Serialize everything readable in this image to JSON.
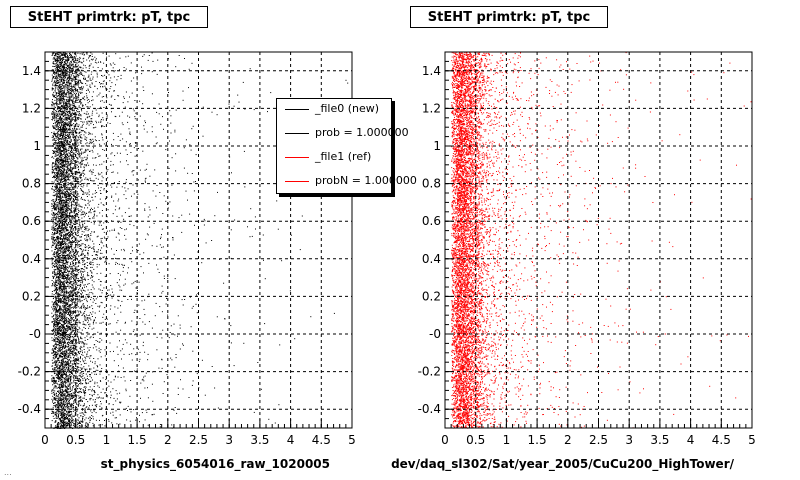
{
  "panels": [
    {
      "title": "StEHT primtrk: pT, tpc",
      "xtitle": "st_physics_6054016_raw_1020005"
    },
    {
      "title": "StEHT primtrk: pT, tpc",
      "xtitle": "dev/daq_sl302/Sat/year_2005/CuCu200_HighTower/"
    }
  ],
  "legend": {
    "entries": [
      {
        "label": "_file0 (new)",
        "color": "#000000"
      },
      {
        "label": "prob = 1.000000",
        "color": "#000000"
      },
      {
        "label": "_file1 (ref)",
        "color": "#ff0000"
      },
      {
        "label": "probN = 1.000000",
        "color": "#ff0000"
      }
    ]
  },
  "footer": "...",
  "chart_data": [
    {
      "type": "scatter",
      "series": [
        {
          "name": "_file0 (new)",
          "color": "#000000"
        }
      ],
      "xlim": [
        0,
        5
      ],
      "ylim": [
        -0.5,
        1.5
      ],
      "xticks": [
        0,
        0.5,
        1,
        1.5,
        2,
        2.5,
        3,
        3.5,
        4,
        4.5,
        5
      ],
      "xtick_labels": [
        "0",
        "0.5",
        "1",
        "1.5",
        "2",
        "2.5",
        "3",
        "3.5",
        "4",
        "4.5",
        "5"
      ],
      "yticks": [
        -0.4,
        -0.2,
        0,
        0.2,
        0.4,
        0.6,
        0.8,
        1,
        1.2,
        1.4
      ],
      "ytick_labels": [
        "-0.4",
        "-0.2",
        "-0",
        "0.2",
        "0.4",
        "0.6",
        "0.8",
        "1",
        "1.2",
        "1.4"
      ],
      "grid": true,
      "distribution": "dense near x=0.1-0.5, falling off toward x=2, sparse to x=5; uniform in y"
    },
    {
      "type": "scatter",
      "series": [
        {
          "name": "_file1 (ref)",
          "color": "#ff0000"
        }
      ],
      "xlim": [
        0,
        5
      ],
      "ylim": [
        -0.5,
        1.5
      ],
      "xticks": [
        0,
        0.5,
        1,
        1.5,
        2,
        2.5,
        3,
        3.5,
        4,
        4.5,
        5
      ],
      "xtick_labels": [
        "0",
        "0.5",
        "1",
        "1.5",
        "2",
        "2.5",
        "3",
        "3.5",
        "4",
        "4.5",
        "5"
      ],
      "yticks": [
        -0.4,
        -0.2,
        0,
        0.2,
        0.4,
        0.6,
        0.8,
        1,
        1.2,
        1.4
      ],
      "ytick_labels": [
        "-0.4",
        "-0.2",
        "-0",
        "0.2",
        "0.4",
        "0.6",
        "0.8",
        "1",
        "1.2",
        "1.4"
      ],
      "grid": true,
      "distribution": "dense near x=0.1-0.5, falling off toward x=2, sparse to x=5; uniform in y"
    }
  ]
}
